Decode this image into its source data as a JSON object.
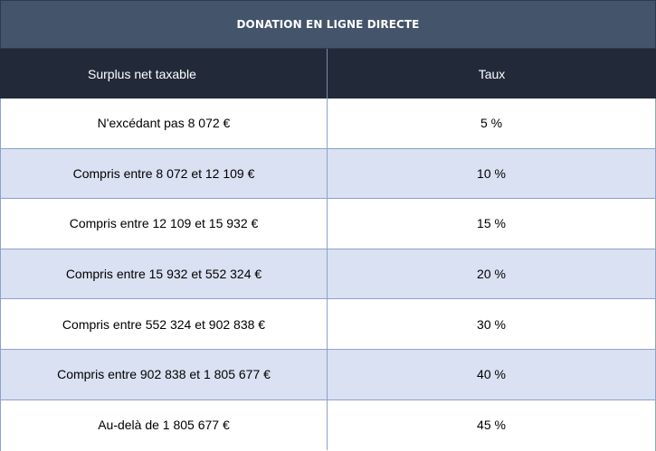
{
  "table": {
    "title": "DONATION EN LIGNE DIRECTE",
    "headers": [
      "Surplus net taxable",
      "Taux"
    ],
    "rows": [
      {
        "bracket": "N'excédant pas 8 072 €",
        "rate": "5 %"
      },
      {
        "bracket": "Compris entre 8 072 et 12 109 €",
        "rate": "10 %"
      },
      {
        "bracket": "Compris entre 12 109 et 15 932 €",
        "rate": "15 %"
      },
      {
        "bracket": "Compris entre 15 932 et 552 324 €",
        "rate": "20 %"
      },
      {
        "bracket": "Compris entre 552 324 et 902 838 €",
        "rate": "30 %"
      },
      {
        "bracket": "Compris entre 902 838 et 1 805 677 €",
        "rate": "40 %"
      },
      {
        "bracket": "Au-delà de 1 805 677 €",
        "rate": "45 %"
      }
    ]
  },
  "colors": {
    "title_bg": "#44546a",
    "header_bg": "#222a3a",
    "alt_row_bg": "#d9e1f2",
    "border": "#8ea2c8"
  }
}
